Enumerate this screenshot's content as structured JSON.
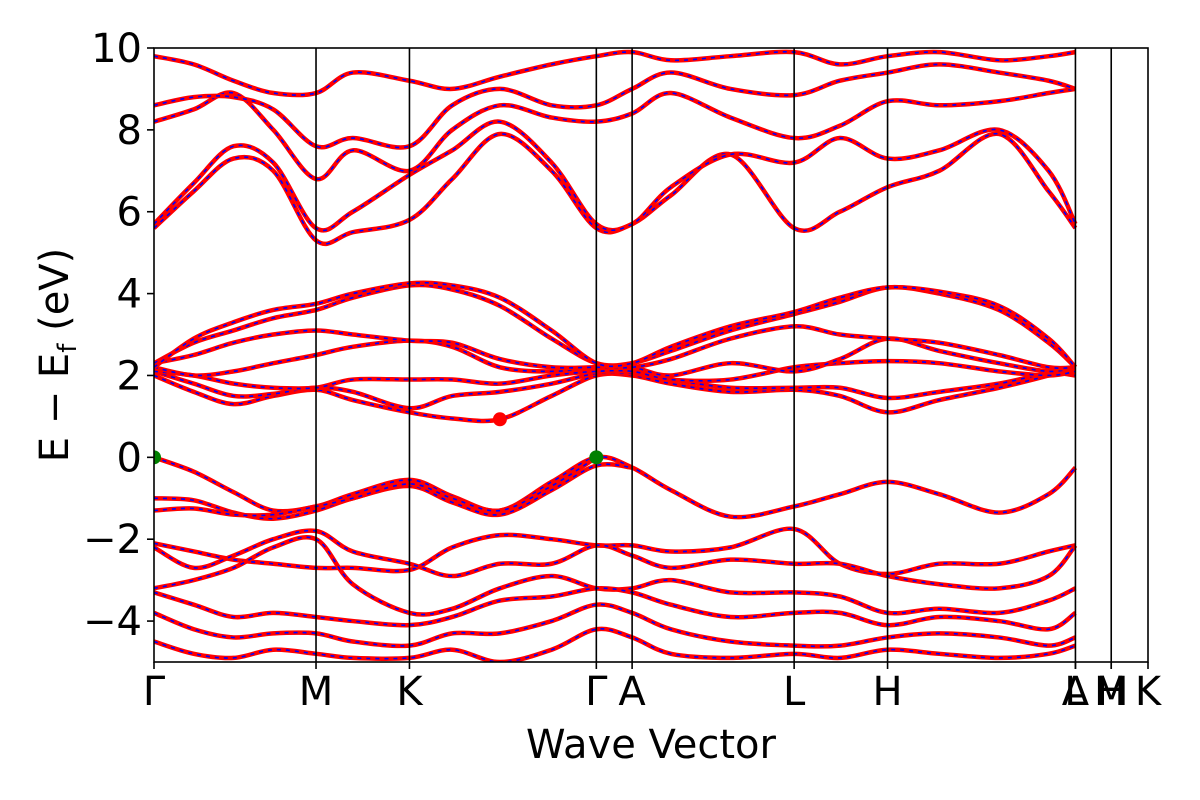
{
  "chart_data": {
    "type": "line",
    "xlabel": "Wave Vector",
    "ylabel_parts": {
      "main": "E − E",
      "sub": "f",
      "unit": " (eV)"
    },
    "ylim": [
      -5,
      10
    ],
    "yticks": [
      -4,
      -2,
      0,
      2,
      4,
      6,
      8,
      10
    ],
    "ytick_labels": [
      "−4",
      "−2",
      "0",
      "2",
      "4",
      "6",
      "8",
      "10"
    ],
    "xlim": [
      0,
      1
    ],
    "kpoints": [
      {
        "label": "Γ",
        "x": 0.0
      },
      {
        "label": "M",
        "x": 0.163
      },
      {
        "label": "K",
        "x": 0.257
      },
      {
        "label": "Γ",
        "x": 0.445
      },
      {
        "label": "A",
        "x": 0.481
      },
      {
        "label": "L",
        "x": 0.644
      },
      {
        "label": "H",
        "x": 0.738
      },
      {
        "label": "A",
        "x": 0.927
      },
      {
        "label": "L",
        "x": 0.927
      },
      {
        "label": "M",
        "x": 0.963
      },
      {
        "label": "H",
        "x": 0.963
      },
      {
        "label": "K",
        "x": 1.0
      }
    ],
    "band_color": "#ff0000",
    "band_overlay_color": "#0000ff",
    "markers": [
      {
        "name": "vbm",
        "x": 0.0,
        "y": 0.0,
        "color": "#008000"
      },
      {
        "name": "vbm",
        "x": 0.445,
        "y": 0.0,
        "color": "#008000"
      },
      {
        "name": "cbm",
        "x": 0.348,
        "y": 0.93,
        "color": "#ff0000"
      }
    ],
    "series": [
      {
        "x": [
          0,
          0.04,
          0.08,
          0.12,
          0.163,
          0.2,
          0.257,
          0.3,
          0.348,
          0.4,
          0.445,
          0.481,
          0.52,
          0.58,
          0.644,
          0.69,
          0.738,
          0.79,
          0.85,
          0.9,
          0.927
        ],
        "y": [
          0.0,
          -0.35,
          -0.85,
          -1.3,
          -1.2,
          -0.9,
          -0.55,
          -0.95,
          -1.3,
          -0.6,
          0.0,
          -0.25,
          -0.8,
          -1.45,
          -1.2,
          -0.9,
          -0.6,
          -0.9,
          -1.35,
          -0.9,
          -0.25
        ]
      },
      {
        "x": [
          0,
          0.04,
          0.08,
          0.12,
          0.163,
          0.2,
          0.257,
          0.3,
          0.348,
          0.4,
          0.445,
          0.481
        ],
        "y": [
          -1.0,
          -1.05,
          -1.35,
          -1.5,
          -1.3,
          -1.0,
          -0.7,
          -1.1,
          -1.4,
          -0.8,
          -0.2,
          -0.25
        ]
      },
      {
        "x": [
          0,
          0.04,
          0.08,
          0.12,
          0.163,
          0.2,
          0.257,
          0.3,
          0.348,
          0.4,
          0.445
        ],
        "y": [
          -1.3,
          -1.25,
          -1.4,
          -1.4,
          -1.2,
          -1.0,
          -0.65,
          -1.0,
          -1.3,
          -0.7,
          0.0
        ]
      },
      {
        "x": [
          0,
          0.04,
          0.08,
          0.12,
          0.163,
          0.2,
          0.257,
          0.3,
          0.348,
          0.4,
          0.445,
          0.481,
          0.52,
          0.58,
          0.644,
          0.69,
          0.738,
          0.79,
          0.85,
          0.9,
          0.927
        ],
        "y": [
          -2.1,
          -2.3,
          -2.5,
          -2.6,
          -2.7,
          -2.7,
          -2.75,
          -2.2,
          -1.9,
          -2.0,
          -2.15,
          -2.15,
          -2.3,
          -2.2,
          -1.75,
          -2.6,
          -2.85,
          -2.6,
          -2.6,
          -2.3,
          -2.15
        ]
      },
      {
        "x": [
          0,
          0.04,
          0.08,
          0.12,
          0.163,
          0.2,
          0.257,
          0.3,
          0.348,
          0.4,
          0.445,
          0.481,
          0.52,
          0.58,
          0.644,
          0.69,
          0.738,
          0.79,
          0.85,
          0.9,
          0.927
        ],
        "y": [
          -2.2,
          -2.7,
          -2.4,
          -2.0,
          -1.8,
          -2.3,
          -2.6,
          -2.9,
          -2.6,
          -2.6,
          -2.15,
          -2.4,
          -2.7,
          -2.5,
          -2.6,
          -2.6,
          -2.9,
          -3.1,
          -3.2,
          -2.9,
          -2.15
        ]
      },
      {
        "x": [
          0,
          0.04,
          0.08,
          0.12,
          0.163,
          0.2,
          0.257,
          0.3,
          0.348,
          0.4,
          0.445,
          0.481,
          0.52,
          0.58,
          0.644,
          0.69,
          0.738,
          0.79,
          0.85,
          0.9,
          0.927
        ],
        "y": [
          -3.2,
          -3.0,
          -2.7,
          -2.2,
          -2.0,
          -3.1,
          -3.8,
          -3.7,
          -3.2,
          -2.9,
          -3.2,
          -3.2,
          -3.0,
          -3.3,
          -3.3,
          -3.4,
          -3.8,
          -3.7,
          -3.8,
          -3.5,
          -3.2
        ]
      },
      {
        "x": [
          0,
          0.04,
          0.08,
          0.12,
          0.163,
          0.2,
          0.257,
          0.3,
          0.348,
          0.4,
          0.445,
          0.481,
          0.52,
          0.58,
          0.644,
          0.69,
          0.738,
          0.79,
          0.85,
          0.9,
          0.927
        ],
        "y": [
          -3.3,
          -3.6,
          -3.9,
          -3.8,
          -3.9,
          -4.0,
          -4.1,
          -3.9,
          -3.5,
          -3.4,
          -3.2,
          -3.3,
          -3.6,
          -3.9,
          -3.8,
          -3.8,
          -4.1,
          -3.9,
          -4.0,
          -4.2,
          -3.8
        ]
      },
      {
        "x": [
          0,
          0.04,
          0.08,
          0.12,
          0.163,
          0.2,
          0.257,
          0.3,
          0.348,
          0.4,
          0.445,
          0.481,
          0.52,
          0.58,
          0.644,
          0.69,
          0.738,
          0.79,
          0.85,
          0.9,
          0.927
        ],
        "y": [
          -3.8,
          -4.2,
          -4.4,
          -4.3,
          -4.3,
          -4.5,
          -4.6,
          -4.3,
          -4.3,
          -4.0,
          -3.6,
          -3.8,
          -4.2,
          -4.5,
          -4.6,
          -4.6,
          -4.4,
          -4.3,
          -4.4,
          -4.6,
          -4.4
        ]
      },
      {
        "x": [
          0,
          0.04,
          0.08,
          0.12,
          0.163,
          0.2,
          0.257,
          0.3,
          0.348,
          0.4,
          0.445,
          0.481,
          0.52,
          0.58,
          0.644,
          0.69,
          0.738,
          0.79,
          0.85,
          0.9,
          0.927
        ],
        "y": [
          -4.5,
          -4.8,
          -4.9,
          -4.7,
          -4.8,
          -4.9,
          -4.9,
          -4.7,
          -5.0,
          -4.7,
          -4.2,
          -4.4,
          -4.8,
          -4.9,
          -4.8,
          -4.9,
          -4.7,
          -4.8,
          -4.9,
          -4.8,
          -4.6
        ]
      },
      {
        "x": [
          0,
          0.04,
          0.08,
          0.12,
          0.163,
          0.2,
          0.257,
          0.3,
          0.348,
          0.4,
          0.445,
          0.481,
          0.52,
          0.58,
          0.644,
          0.69,
          0.738,
          0.79,
          0.85,
          0.9,
          0.927
        ],
        "y": [
          2.0,
          1.6,
          1.3,
          1.5,
          1.65,
          1.4,
          1.1,
          0.95,
          0.93,
          1.5,
          2.0,
          2.0,
          1.8,
          1.6,
          1.65,
          1.5,
          1.1,
          1.4,
          1.7,
          2.0,
          2.2
        ]
      },
      {
        "x": [
          0,
          0.04,
          0.08,
          0.12,
          0.163,
          0.2,
          0.257,
          0.3,
          0.348,
          0.4,
          0.445,
          0.481,
          0.52,
          0.58,
          0.644,
          0.69,
          0.738,
          0.79,
          0.85,
          0.9,
          0.927
        ],
        "y": [
          2.1,
          1.8,
          1.5,
          1.55,
          1.7,
          1.6,
          1.2,
          1.5,
          1.6,
          1.8,
          2.05,
          2.05,
          1.9,
          1.7,
          1.7,
          1.7,
          1.45,
          1.6,
          1.8,
          2.05,
          2.0
        ]
      },
      {
        "x": [
          0,
          0.04,
          0.08,
          0.12,
          0.163,
          0.2,
          0.257,
          0.3,
          0.348,
          0.4,
          0.445,
          0.481,
          0.52,
          0.58,
          0.644,
          0.69,
          0.738,
          0.79,
          0.85,
          0.9,
          0.927
        ],
        "y": [
          2.1,
          2.0,
          1.8,
          1.7,
          1.7,
          1.9,
          1.9,
          1.9,
          1.8,
          2.0,
          2.1,
          2.1,
          1.9,
          1.9,
          2.2,
          2.3,
          2.35,
          2.3,
          2.1,
          2.0,
          2.1
        ]
      },
      {
        "x": [
          0,
          0.04,
          0.08,
          0.12,
          0.163,
          0.2,
          0.257,
          0.3,
          0.348,
          0.4,
          0.445,
          0.481,
          0.52,
          0.58,
          0.644,
          0.69,
          0.738,
          0.79,
          0.85,
          0.9,
          0.927
        ],
        "y": [
          2.2,
          2.0,
          2.1,
          2.3,
          2.5,
          2.7,
          2.85,
          2.7,
          2.2,
          2.1,
          2.2,
          2.2,
          2.0,
          2.3,
          2.1,
          2.4,
          2.9,
          2.6,
          2.3,
          2.1,
          2.2
        ]
      },
      {
        "x": [
          0,
          0.04,
          0.08,
          0.12,
          0.163,
          0.2,
          0.257,
          0.3,
          0.348,
          0.4,
          0.445,
          0.481,
          0.52,
          0.58,
          0.644,
          0.69,
          0.738,
          0.79,
          0.85,
          0.9,
          0.927
        ],
        "y": [
          2.3,
          2.5,
          2.8,
          3.0,
          3.1,
          3.0,
          2.85,
          2.8,
          2.4,
          2.2,
          2.2,
          2.2,
          2.4,
          2.9,
          3.2,
          3.0,
          2.9,
          2.8,
          2.5,
          2.2,
          2.2
        ]
      },
      {
        "x": [
          0,
          0.04,
          0.08,
          0.12,
          0.163,
          0.2,
          0.257,
          0.3,
          0.348,
          0.4,
          0.445,
          0.481,
          0.52,
          0.58,
          0.644,
          0.69,
          0.738,
          0.79,
          0.85,
          0.9,
          0.927
        ],
        "y": [
          2.3,
          2.8,
          3.1,
          3.4,
          3.6,
          3.9,
          4.2,
          4.1,
          3.7,
          2.9,
          2.3,
          2.3,
          2.6,
          3.1,
          3.5,
          3.8,
          4.15,
          4.0,
          3.6,
          2.8,
          2.2
        ]
      },
      {
        "x": [
          0,
          0.04,
          0.08,
          0.12,
          0.163,
          0.2,
          0.257,
          0.3,
          0.348,
          0.4,
          0.445,
          0.481,
          0.52,
          0.58,
          0.644,
          0.69,
          0.738,
          0.79,
          0.85,
          0.9,
          0.927
        ],
        "y": [
          2.2,
          2.9,
          3.3,
          3.6,
          3.75,
          4.0,
          4.25,
          4.2,
          3.9,
          3.1,
          2.3,
          2.3,
          2.7,
          3.2,
          3.55,
          3.9,
          4.15,
          4.05,
          3.7,
          2.9,
          2.2
        ]
      },
      {
        "x": [
          0,
          0.04,
          0.08,
          0.12,
          0.163,
          0.2,
          0.257,
          0.3,
          0.348,
          0.4,
          0.445,
          0.481,
          0.52,
          0.58,
          0.644,
          0.69,
          0.738,
          0.79,
          0.85,
          0.9,
          0.927
        ],
        "y": [
          5.6,
          6.5,
          7.3,
          7.0,
          5.3,
          5.5,
          5.8,
          6.8,
          7.9,
          7.0,
          5.6,
          5.7,
          6.4,
          7.4,
          5.6,
          6.0,
          6.6,
          7.0,
          7.9,
          6.5,
          5.6
        ]
      },
      {
        "x": [
          0,
          0.04,
          0.08,
          0.12,
          0.163,
          0.2,
          0.257,
          0.3,
          0.348,
          0.4,
          0.445,
          0.481,
          0.52,
          0.58,
          0.644,
          0.69,
          0.738,
          0.79,
          0.85,
          0.9,
          0.927
        ],
        "y": [
          5.7,
          6.7,
          7.6,
          7.2,
          5.6,
          6.0,
          6.9,
          7.5,
          8.2,
          7.2,
          5.7,
          5.7,
          6.6,
          7.4,
          7.2,
          7.8,
          7.3,
          7.5,
          8.0,
          7.0,
          5.7
        ]
      },
      {
        "x": [
          0,
          0.04,
          0.08,
          0.12,
          0.163,
          0.2,
          0.257,
          0.3,
          0.348,
          0.4,
          0.445,
          0.481,
          0.52,
          0.58,
          0.644,
          0.69,
          0.738,
          0.79,
          0.85,
          0.9,
          0.927
        ],
        "y": [
          8.2,
          8.5,
          8.9,
          8.0,
          6.8,
          7.5,
          7.0,
          8.0,
          8.6,
          8.3,
          8.2,
          8.4,
          8.9,
          8.3,
          7.8,
          8.1,
          8.7,
          8.6,
          8.7,
          8.9,
          9.0
        ]
      },
      {
        "x": [
          0,
          0.04,
          0.08,
          0.12,
          0.163,
          0.2,
          0.257,
          0.3,
          0.348,
          0.4,
          0.445,
          0.481,
          0.52,
          0.58,
          0.644,
          0.69,
          0.738,
          0.79,
          0.85,
          0.9,
          0.927
        ],
        "y": [
          8.6,
          8.8,
          8.8,
          8.5,
          7.6,
          7.8,
          7.6,
          8.6,
          9.0,
          8.6,
          8.6,
          9.0,
          9.4,
          9.0,
          8.85,
          9.2,
          9.4,
          9.6,
          9.4,
          9.2,
          9.0
        ]
      },
      {
        "x": [
          0,
          0.04,
          0.08,
          0.12,
          0.163,
          0.2,
          0.257,
          0.3,
          0.348,
          0.4,
          0.445,
          0.481,
          0.52,
          0.58,
          0.644,
          0.69,
          0.738,
          0.79,
          0.85,
          0.9,
          0.927
        ],
        "y": [
          9.8,
          9.6,
          9.2,
          8.9,
          8.9,
          9.4,
          9.2,
          9.0,
          9.3,
          9.6,
          9.8,
          9.9,
          9.7,
          9.8,
          9.9,
          9.6,
          9.8,
          9.9,
          9.7,
          9.8,
          9.9
        ]
      }
    ]
  }
}
